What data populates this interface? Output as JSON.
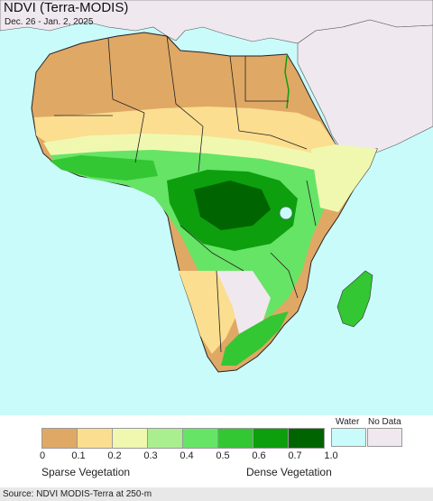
{
  "title": "NDVI (Terra-MODIS)",
  "subtitle": "Dec. 26 - Jan. 2, 2025",
  "legend": {
    "bins": [
      {
        "color": "#e0a865"
      },
      {
        "color": "#fbde8f"
      },
      {
        "color": "#f0f8b0"
      },
      {
        "color": "#a9ef8f"
      },
      {
        "color": "#66e466"
      },
      {
        "color": "#33c733"
      },
      {
        "color": "#0d9f0d"
      },
      {
        "color": "#006400"
      }
    ],
    "ticks": [
      "0",
      "0.1",
      "0.2",
      "0.3",
      "0.4",
      "0.5",
      "0.6",
      "0.7",
      "1.0"
    ],
    "water_label": "Water",
    "water_color": "#c9fbfb",
    "nodata_label": "No Data",
    "nodata_color": "#efe8ef",
    "sparse_label": "Sparse Vegetation",
    "dense_label": "Dense Vegetation"
  },
  "source": "Source: NDVI MODIS-Terra at 250-m",
  "colors": {
    "desert": "#e0a865",
    "steppe": "#fbde8f",
    "nodata": "#efe8ef",
    "forest": "#0d9f0d",
    "border": "#222222"
  }
}
